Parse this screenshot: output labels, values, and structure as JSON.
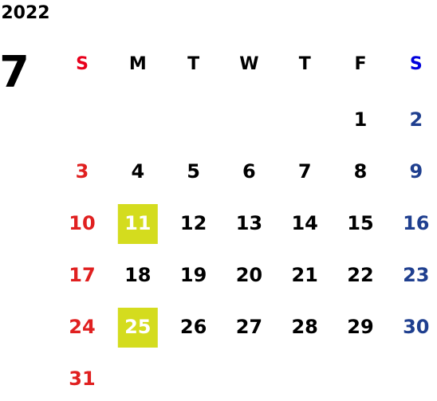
{
  "year": "2022",
  "month": "7",
  "weekdays": [
    "S",
    "M",
    "T",
    "W",
    "T",
    "F",
    "S"
  ],
  "weeks": [
    [
      null,
      null,
      null,
      null,
      null,
      "1",
      "2"
    ],
    [
      "3",
      "4",
      "5",
      "6",
      "7",
      "8",
      "9"
    ],
    [
      "10",
      "11",
      "12",
      "13",
      "14",
      "15",
      "16"
    ],
    [
      "17",
      "18",
      "19",
      "20",
      "21",
      "22",
      "23"
    ],
    [
      "24",
      "25",
      "26",
      "27",
      "28",
      "29",
      "30"
    ],
    [
      "31",
      null,
      null,
      null,
      null,
      null,
      null
    ]
  ],
  "highlighted": [
    "11",
    "25"
  ],
  "highlight_color": "#d4dc1e",
  "sunday_header_color": "#e8001c",
  "saturday_header_color": "#0000dd",
  "sunday_color": "#e02020",
  "saturday_color": "#1f3f8f",
  "weekday_color": "#000000"
}
